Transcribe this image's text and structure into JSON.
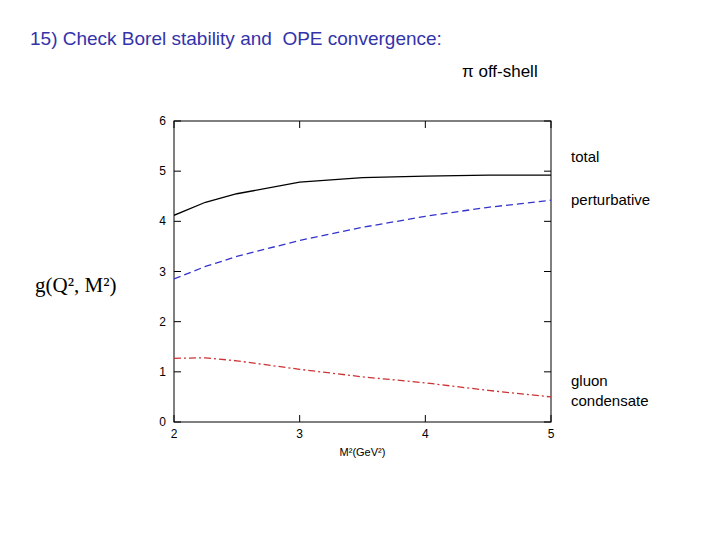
{
  "chart_data": {
    "type": "line",
    "title": "15) Check Borel stability and  OPE convergence:",
    "annotation": "π off-shell",
    "x_label": "M²(GeV²)",
    "y_label": "g(Q², M²)",
    "x": [
      2,
      2.25,
      2.5,
      3,
      3.5,
      4,
      4.5,
      5
    ],
    "series": [
      {
        "name": "total",
        "color": "#000000",
        "line_style": "solid",
        "values": [
          4.12,
          4.38,
          4.55,
          4.78,
          4.87,
          4.9,
          4.92,
          4.92
        ]
      },
      {
        "name": "perturbative",
        "color": "#3333cc",
        "line_style": "dashed",
        "values": [
          2.85,
          3.1,
          3.3,
          3.62,
          3.88,
          4.1,
          4.28,
          4.42
        ]
      },
      {
        "name": "gluon condensate",
        "color": "#cc3333",
        "line_style": "dashdot",
        "values": [
          1.27,
          1.28,
          1.22,
          1.05,
          0.9,
          0.78,
          0.63,
          0.5
        ]
      }
    ],
    "xlim": [
      2,
      5
    ],
    "ylim": [
      0,
      6
    ],
    "xticks": [
      2,
      3,
      4,
      5
    ],
    "yticks": [
      0,
      1,
      2,
      3,
      4,
      5,
      6
    ],
    "grid": false
  }
}
